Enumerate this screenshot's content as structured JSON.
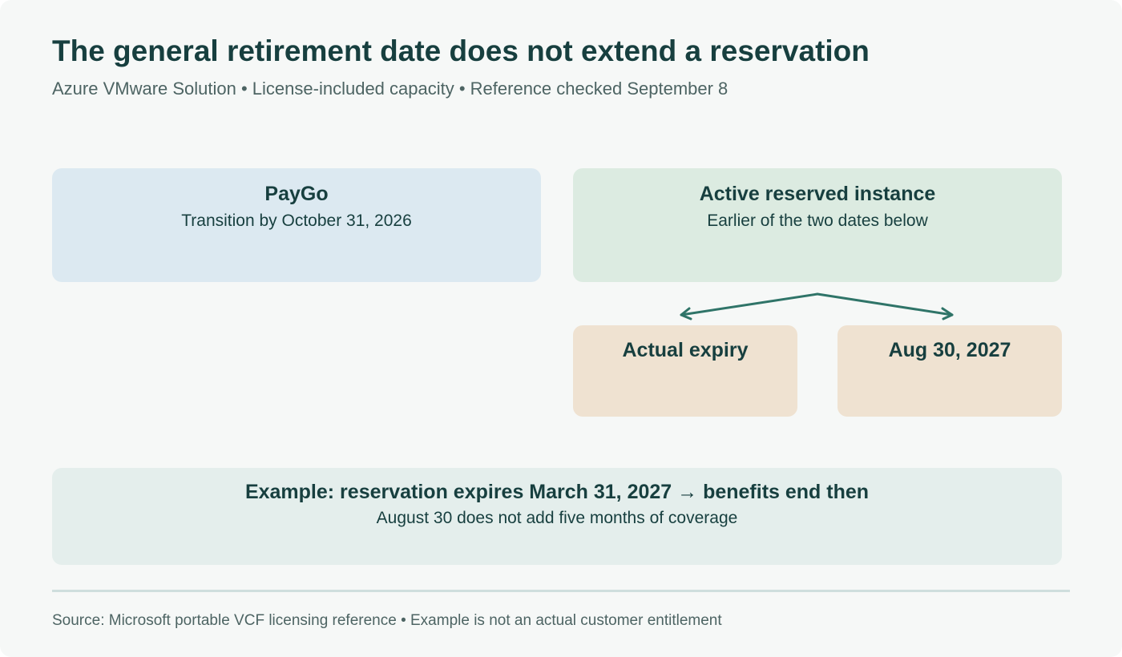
{
  "header": {
    "title": "The general retirement date does not extend a reservation",
    "subtitle": "Azure VMware Solution • License-included capacity • Reference checked September 8"
  },
  "paygo": {
    "title": "PayGo",
    "detail": "Transition by October 31, 2026"
  },
  "reserved": {
    "title": "Active reserved instance",
    "detail": "Earlier of the two dates below"
  },
  "options": {
    "left": "Actual expiry",
    "right": "Aug 30, 2027"
  },
  "example": {
    "title": "Example: reservation expires March 31, 2027 → benefits end then",
    "detail": "August 30 does not add five months of coverage"
  },
  "footer": {
    "source": "Source: Microsoft portable VCF licensing reference • Example is not an actual customer entitlement"
  },
  "colors": {
    "background": "#f6f8f7",
    "title_text": "#173f3f",
    "paygo_fill": "#dce9f1",
    "reserved_fill": "#dcebe1",
    "date_option_fill": "#efe2d1",
    "example_fill": "#e4eeec",
    "arrow": "#2f7468"
  }
}
